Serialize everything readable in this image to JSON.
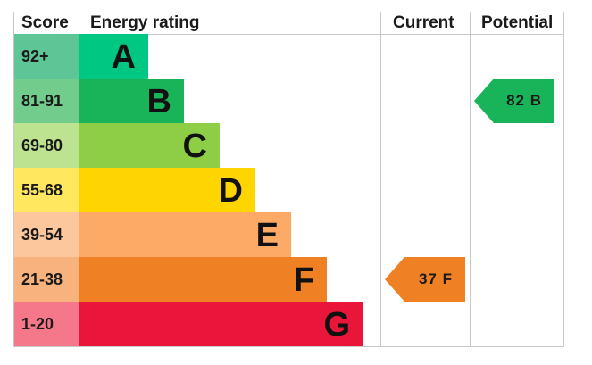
{
  "headers": {
    "score": "Score",
    "energy_rating": "Energy rating",
    "current": "Current",
    "potential": "Potential"
  },
  "chart_data": {
    "type": "bar",
    "bands": [
      {
        "score": "92+",
        "letter": "A",
        "score_color": "#5ec596",
        "bar_color": "#00c781"
      },
      {
        "score": "81-91",
        "letter": "B",
        "score_color": "#72cd8c",
        "bar_color": "#19b459"
      },
      {
        "score": "69-80",
        "letter": "C",
        "score_color": "#bde290",
        "bar_color": "#8dce46"
      },
      {
        "score": "55-68",
        "letter": "D",
        "score_color": "#ffe860",
        "bar_color": "#ffd500"
      },
      {
        "score": "39-54",
        "letter": "E",
        "score_color": "#fdc79e",
        "bar_color": "#fcaa65"
      },
      {
        "score": "21-38",
        "letter": "F",
        "score_color": "#f8b27e",
        "bar_color": "#ef8023"
      },
      {
        "score": "1-20",
        "letter": "G",
        "score_color": "#f4788a",
        "bar_color": "#e9153b"
      }
    ],
    "current": {
      "value": 37,
      "band": "F",
      "label": "37 F",
      "color": "#ef8023"
    },
    "potential": {
      "value": 82,
      "band": "B",
      "label": "82 B",
      "color": "#19b459"
    }
  }
}
